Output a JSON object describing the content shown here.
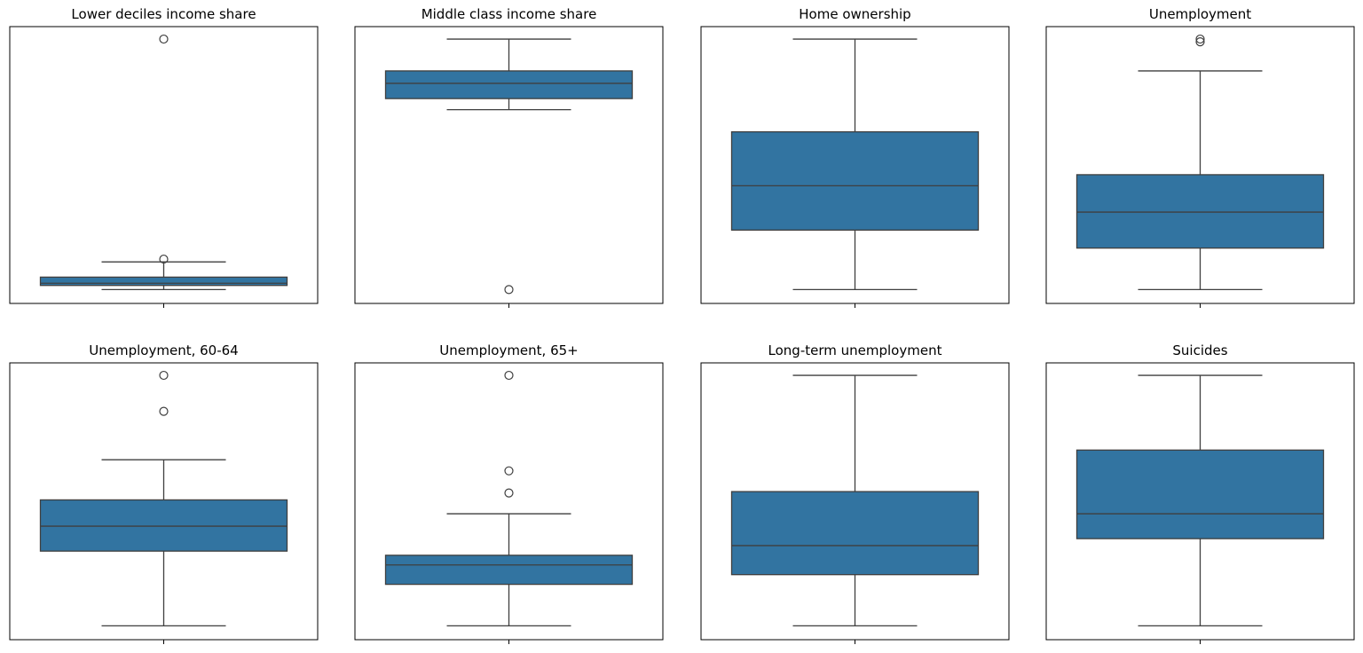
{
  "chart_data": [
    {
      "type": "box",
      "title": "Lower deciles income share",
      "color": "#3274a1",
      "ylim": [
        0,
        1
      ],
      "box": {
        "whislo": 0.05,
        "q1": 0.065,
        "med": 0.073,
        "q3": 0.095,
        "whishi": 0.15,
        "fliers": [
          0.16,
          0.955
        ]
      }
    },
    {
      "type": "box",
      "title": "Middle class income share",
      "color": "#3274a1",
      "ylim": [
        0,
        1
      ],
      "box": {
        "whislo": 0.7,
        "q1": 0.74,
        "med": 0.795,
        "q3": 0.84,
        "whishi": 0.955,
        "fliers": [
          0.05
        ]
      }
    },
    {
      "type": "box",
      "title": "Home ownership",
      "color": "#3274a1",
      "ylim": [
        0,
        1
      ],
      "box": {
        "whislo": 0.05,
        "q1": 0.265,
        "med": 0.425,
        "q3": 0.62,
        "whishi": 0.955,
        "fliers": []
      }
    },
    {
      "type": "box",
      "title": "Unemployment",
      "color": "#3274a1",
      "ylim": [
        0,
        1
      ],
      "box": {
        "whislo": 0.05,
        "q1": 0.2,
        "med": 0.33,
        "q3": 0.465,
        "whishi": 0.84,
        "fliers": [
          0.945,
          0.955
        ]
      }
    },
    {
      "type": "box",
      "title": "Unemployment, 60-64",
      "color": "#3274a1",
      "ylim": [
        0,
        1
      ],
      "box": {
        "whislo": 0.05,
        "q1": 0.32,
        "med": 0.41,
        "q3": 0.505,
        "whishi": 0.65,
        "fliers": [
          0.825,
          0.955
        ]
      }
    },
    {
      "type": "box",
      "title": "Unemployment, 65+",
      "color": "#3274a1",
      "ylim": [
        0,
        1
      ],
      "box": {
        "whislo": 0.05,
        "q1": 0.2,
        "med": 0.27,
        "q3": 0.305,
        "whishi": 0.455,
        "fliers": [
          0.53,
          0.61,
          0.955
        ]
      }
    },
    {
      "type": "box",
      "title": "Long-term unemployment",
      "color": "#3274a1",
      "ylim": [
        0,
        1
      ],
      "box": {
        "whislo": 0.05,
        "q1": 0.235,
        "med": 0.34,
        "q3": 0.535,
        "whishi": 0.955,
        "fliers": []
      }
    },
    {
      "type": "box",
      "title": "Suicides",
      "color": "#3274a1",
      "ylim": [
        0,
        1
      ],
      "box": {
        "whislo": 0.05,
        "q1": 0.365,
        "med": 0.455,
        "q3": 0.685,
        "whishi": 0.955,
        "fliers": []
      }
    }
  ]
}
